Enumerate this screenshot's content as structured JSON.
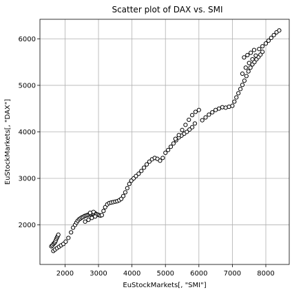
{
  "chart_data": {
    "type": "scatter",
    "title": "Scatter plot of DAX vs. SMI",
    "xlabel": "EuStockMarkets[, \"SMI\"]",
    "ylabel": "EuStockMarkets[, \"DAX\"]",
    "xlim": [
      1250,
      8700
    ],
    "ylim": [
      1150,
      6420
    ],
    "xticks": [
      2000,
      3000,
      4000,
      5000,
      6000,
      7000,
      8000
    ],
    "yticks": [
      2000,
      3000,
      4000,
      5000,
      6000
    ],
    "xtick_labels": [
      "2000",
      "3000",
      "4000",
      "5000",
      "6000",
      "7000",
      "8000"
    ],
    "ytick_labels": [
      "2000",
      "3000",
      "4000",
      "5000",
      "6000"
    ],
    "grid": true,
    "marker": "open-circle",
    "colors": {
      "marker_edge": "#000000",
      "marker_fill": "#ffffff",
      "grid": "#b0b0b0"
    },
    "x": [
      1590,
      1620,
      1650,
      1680,
      1700,
      1720,
      1740,
      1760,
      1780,
      1800,
      1650,
      1700,
      1760,
      1820,
      1880,
      1950,
      2020,
      2100,
      2180,
      2240,
      2300,
      2340,
      2380,
      2420,
      2460,
      2500,
      2540,
      2580,
      2620,
      2660,
      2700,
      2740,
      2780,
      2820,
      2860,
      2900,
      2940,
      2980,
      3020,
      3060,
      3100,
      2600,
      2700,
      2800,
      2900,
      2750,
      2850,
      3150,
      3200,
      3260,
      3320,
      3380,
      3440,
      3500,
      3560,
      3620,
      3680,
      3740,
      3800,
      3860,
      3920,
      3980,
      4050,
      4120,
      4200,
      4280,
      4360,
      4440,
      4520,
      4600,
      4680,
      4760,
      4840,
      4920,
      5000,
      5080,
      5160,
      5240,
      5320,
      5400,
      5480,
      5560,
      5640,
      5720,
      5800,
      5880,
      5300,
      5400,
      5500,
      5600,
      5700,
      5800,
      5900,
      6000,
      6100,
      6200,
      6300,
      6400,
      6500,
      6600,
      6700,
      6800,
      6900,
      7000,
      7060,
      7120,
      7180,
      7240,
      7300,
      7360,
      7420,
      7480,
      7540,
      7600,
      7660,
      7720,
      7780,
      7840,
      7900,
      7300,
      7400,
      7500,
      7600,
      7700,
      7350,
      7450,
      7550,
      7650,
      7800,
      7900,
      8000,
      8080,
      8160,
      8240,
      8320,
      8400
    ],
    "y": [
      1540,
      1560,
      1590,
      1610,
      1630,
      1660,
      1700,
      1730,
      1760,
      1790,
      1440,
      1470,
      1500,
      1530,
      1560,
      1590,
      1640,
      1720,
      1840,
      1940,
      2000,
      2050,
      2090,
      2120,
      2140,
      2160,
      2170,
      2190,
      2200,
      2210,
      2220,
      2230,
      2230,
      2240,
      2240,
      2250,
      2230,
      2220,
      2210,
      2200,
      2210,
      2070,
      2110,
      2150,
      2180,
      2260,
      2280,
      2300,
      2380,
      2440,
      2470,
      2480,
      2490,
      2500,
      2510,
      2530,
      2560,
      2620,
      2700,
      2790,
      2880,
      2950,
      3000,
      3050,
      3100,
      3160,
      3230,
      3300,
      3360,
      3410,
      3440,
      3420,
      3380,
      3440,
      3550,
      3610,
      3680,
      3750,
      3820,
      3880,
      3920,
      3960,
      4000,
      4050,
      4100,
      4180,
      3850,
      3930,
      4040,
      4150,
      4260,
      4360,
      4430,
      4470,
      4250,
      4310,
      4370,
      4420,
      4470,
      4500,
      4530,
      4520,
      4540,
      4560,
      4650,
      4740,
      4830,
      4920,
      5010,
      5100,
      5200,
      5300,
      5380,
      5450,
      5500,
      5560,
      5610,
      5660,
      5720,
      5250,
      5380,
      5480,
      5560,
      5640,
      5600,
      5650,
      5700,
      5760,
      5780,
      5840,
      5900,
      5960,
      6020,
      6080,
      6140,
      6180
    ]
  }
}
